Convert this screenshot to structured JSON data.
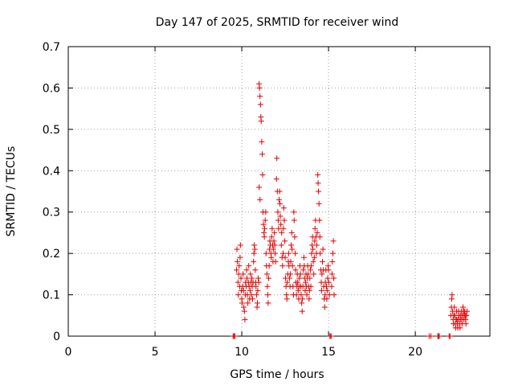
{
  "chart_data": {
    "type": "scatter",
    "title": "Day 147 of 2025, SRMTID for receiver wind",
    "xlabel": "GPS time / hours",
    "ylabel": "SRMTID / TECUs",
    "xlim": [
      0,
      24.3
    ],
    "ylim": [
      0,
      0.7
    ],
    "x_ticks": [
      0,
      5,
      10,
      15,
      20
    ],
    "x_tick_labels": [
      "0",
      "5",
      "10",
      "15",
      "20"
    ],
    "y_ticks": [
      0,
      0.1,
      0.2,
      0.3,
      0.4,
      0.5,
      0.6,
      0.7
    ],
    "y_tick_labels": [
      "0",
      "0.1",
      "0.2",
      "0.3",
      "0.4",
      "0.5",
      "0.6",
      "0.7"
    ],
    "grid": true,
    "marker": "plus",
    "color": "#e00000",
    "series": [
      {
        "name": "SRMTID",
        "points": [
          [
            9.5,
            0.0
          ],
          [
            9.55,
            0.0
          ],
          [
            9.6,
            0.0
          ],
          [
            9.7,
            0.16
          ],
          [
            9.72,
            0.21
          ],
          [
            9.75,
            0.18
          ],
          [
            9.78,
            0.13
          ],
          [
            9.8,
            0.1
          ],
          [
            9.82,
            0.15
          ],
          [
            9.85,
            0.17
          ],
          [
            9.88,
            0.12
          ],
          [
            9.9,
            0.19
          ],
          [
            9.92,
            0.22
          ],
          [
            9.95,
            0.14
          ],
          [
            9.98,
            0.11
          ],
          [
            10.0,
            0.09
          ],
          [
            10.02,
            0.08
          ],
          [
            10.05,
            0.12
          ],
          [
            10.08,
            0.15
          ],
          [
            10.1,
            0.11
          ],
          [
            10.12,
            0.07
          ],
          [
            10.15,
            0.06
          ],
          [
            10.18,
            0.04
          ],
          [
            10.2,
            0.1
          ],
          [
            10.22,
            0.13
          ],
          [
            10.25,
            0.12
          ],
          [
            10.28,
            0.16
          ],
          [
            10.3,
            0.14
          ],
          [
            10.32,
            0.1
          ],
          [
            10.35,
            0.08
          ],
          [
            10.38,
            0.13
          ],
          [
            10.4,
            0.17
          ],
          [
            10.42,
            0.12
          ],
          [
            10.45,
            0.09
          ],
          [
            10.48,
            0.11
          ],
          [
            10.5,
            0.15
          ],
          [
            10.52,
            0.13
          ],
          [
            10.55,
            0.1
          ],
          [
            10.58,
            0.14
          ],
          [
            10.6,
            0.12
          ],
          [
            10.62,
            0.09
          ],
          [
            10.65,
            0.13
          ],
          [
            10.68,
            0.18
          ],
          [
            10.7,
            0.2
          ],
          [
            10.72,
            0.22
          ],
          [
            10.75,
            0.21
          ],
          [
            10.78,
            0.16
          ],
          [
            10.8,
            0.13
          ],
          [
            10.82,
            0.12
          ],
          [
            10.85,
            0.1
          ],
          [
            10.88,
            0.07
          ],
          [
            10.9,
            0.08
          ],
          [
            10.92,
            0.11
          ],
          [
            10.95,
            0.14
          ],
          [
            10.98,
            0.13
          ],
          [
            11.0,
            0.61
          ],
          [
            11.02,
            0.6
          ],
          [
            11.05,
            0.58
          ],
          [
            11.08,
            0.56
          ],
          [
            11.1,
            0.53
          ],
          [
            11.12,
            0.52
          ],
          [
            11.15,
            0.47
          ],
          [
            11.18,
            0.44
          ],
          [
            11.2,
            0.39
          ],
          [
            11.0,
            0.36
          ],
          [
            11.05,
            0.33
          ],
          [
            11.22,
            0.3
          ],
          [
            11.25,
            0.27
          ],
          [
            11.28,
            0.25
          ],
          [
            11.3,
            0.24
          ],
          [
            11.32,
            0.26
          ],
          [
            11.35,
            0.28
          ],
          [
            11.38,
            0.3
          ],
          [
            11.4,
            0.2
          ],
          [
            11.42,
            0.17
          ],
          [
            11.45,
            0.15
          ],
          [
            11.48,
            0.12
          ],
          [
            11.5,
            0.1
          ],
          [
            11.52,
            0.08
          ],
          [
            11.55,
            0.14
          ],
          [
            11.58,
            0.17
          ],
          [
            11.6,
            0.21
          ],
          [
            11.62,
            0.23
          ],
          [
            11.65,
            0.22
          ],
          [
            11.68,
            0.2
          ],
          [
            11.7,
            0.19
          ],
          [
            11.72,
            0.24
          ],
          [
            11.75,
            0.26
          ],
          [
            11.78,
            0.22
          ],
          [
            11.8,
            0.18
          ],
          [
            11.82,
            0.21
          ],
          [
            11.85,
            0.23
          ],
          [
            11.88,
            0.25
          ],
          [
            11.9,
            0.22
          ],
          [
            11.92,
            0.2
          ],
          [
            11.95,
            0.18
          ],
          [
            12.0,
            0.38
          ],
          [
            12.02,
            0.43
          ],
          [
            12.05,
            0.35
          ],
          [
            12.08,
            0.3
          ],
          [
            12.1,
            0.28
          ],
          [
            12.12,
            0.26
          ],
          [
            12.15,
            0.33
          ],
          [
            12.18,
            0.35
          ],
          [
            12.2,
            0.32
          ],
          [
            12.22,
            0.29
          ],
          [
            12.25,
            0.27
          ],
          [
            12.28,
            0.22
          ],
          [
            12.3,
            0.25
          ],
          [
            12.32,
            0.19
          ],
          [
            12.35,
            0.17
          ],
          [
            12.38,
            0.2
          ],
          [
            12.4,
            0.26
          ],
          [
            12.42,
            0.31
          ],
          [
            12.45,
            0.28
          ],
          [
            12.48,
            0.23
          ],
          [
            12.5,
            0.19
          ],
          [
            12.52,
            0.14
          ],
          [
            12.55,
            0.12
          ],
          [
            12.58,
            0.1
          ],
          [
            12.6,
            0.09
          ],
          [
            12.62,
            0.13
          ],
          [
            12.65,
            0.15
          ],
          [
            12.68,
            0.18
          ],
          [
            12.7,
            0.2
          ],
          [
            12.72,
            0.17
          ],
          [
            12.75,
            0.14
          ],
          [
            12.78,
            0.12
          ],
          [
            12.8,
            0.15
          ],
          [
            12.82,
            0.18
          ],
          [
            12.85,
            0.22
          ],
          [
            12.88,
            0.25
          ],
          [
            12.9,
            0.21
          ],
          [
            12.92,
            0.17
          ],
          [
            12.95,
            0.12
          ],
          [
            12.98,
            0.1
          ],
          [
            13.0,
            0.3
          ],
          [
            13.02,
            0.28
          ],
          [
            13.05,
            0.24
          ],
          [
            13.08,
            0.2
          ],
          [
            13.1,
            0.16
          ],
          [
            13.12,
            0.13
          ],
          [
            13.15,
            0.1
          ],
          [
            13.18,
            0.12
          ],
          [
            13.2,
            0.15
          ],
          [
            13.22,
            0.13
          ],
          [
            13.25,
            0.11
          ],
          [
            13.28,
            0.09
          ],
          [
            13.3,
            0.12
          ],
          [
            13.32,
            0.14
          ],
          [
            13.35,
            0.17
          ],
          [
            13.38,
            0.15
          ],
          [
            13.4,
            0.12
          ],
          [
            13.42,
            0.1
          ],
          [
            13.45,
            0.08
          ],
          [
            13.48,
            0.06
          ],
          [
            13.5,
            0.09
          ],
          [
            13.52,
            0.12
          ],
          [
            13.55,
            0.16
          ],
          [
            13.58,
            0.19
          ],
          [
            13.6,
            0.17
          ],
          [
            13.62,
            0.14
          ],
          [
            13.65,
            0.11
          ],
          [
            13.68,
            0.13
          ],
          [
            13.7,
            0.15
          ],
          [
            13.72,
            0.12
          ],
          [
            13.75,
            0.1
          ],
          [
            13.78,
            0.14
          ],
          [
            13.8,
            0.17
          ],
          [
            13.82,
            0.15
          ],
          [
            13.85,
            0.12
          ],
          [
            13.88,
            0.09
          ],
          [
            13.9,
            0.11
          ],
          [
            13.92,
            0.14
          ],
          [
            13.95,
            0.16
          ],
          [
            13.98,
            0.12
          ],
          [
            14.0,
            0.17
          ],
          [
            14.02,
            0.2
          ],
          [
            14.05,
            0.22
          ],
          [
            14.08,
            0.24
          ],
          [
            14.1,
            0.21
          ],
          [
            14.12,
            0.18
          ],
          [
            14.15,
            0.15
          ],
          [
            14.18,
            0.19
          ],
          [
            14.2,
            0.23
          ],
          [
            14.22,
            0.26
          ],
          [
            14.25,
            0.28
          ],
          [
            14.28,
            0.24
          ],
          [
            14.3,
            0.2
          ],
          [
            14.32,
            0.22
          ],
          [
            14.35,
            0.25
          ],
          [
            14.38,
            0.39
          ],
          [
            14.4,
            0.37
          ],
          [
            14.42,
            0.35
          ],
          [
            14.45,
            0.32
          ],
          [
            14.48,
            0.28
          ],
          [
            14.5,
            0.24
          ],
          [
            14.52,
            0.2
          ],
          [
            14.55,
            0.16
          ],
          [
            14.58,
            0.13
          ],
          [
            14.6,
            0.11
          ],
          [
            14.62,
            0.15
          ],
          [
            14.65,
            0.18
          ],
          [
            14.68,
            0.21
          ],
          [
            14.7,
            0.16
          ],
          [
            14.72,
            0.12
          ],
          [
            14.75,
            0.09
          ],
          [
            14.78,
            0.07
          ],
          [
            14.8,
            0.1
          ],
          [
            14.82,
            0.13
          ],
          [
            14.85,
            0.16
          ],
          [
            14.88,
            0.12
          ],
          [
            14.9,
            0.09
          ],
          [
            14.92,
            0.11
          ],
          [
            14.95,
            0.14
          ],
          [
            14.98,
            0.17
          ],
          [
            15.0,
            0.16
          ],
          [
            15.02,
            0.13
          ],
          [
            15.05,
            0.1
          ],
          [
            15.08,
            0.0
          ],
          [
            15.1,
            0.0
          ],
          [
            15.15,
            0.0
          ],
          [
            15.18,
            0.12
          ],
          [
            15.2,
            0.15
          ],
          [
            15.22,
            0.18
          ],
          [
            15.25,
            0.2
          ],
          [
            15.28,
            0.23
          ],
          [
            15.3,
            0.14
          ],
          [
            15.32,
            0.1
          ],
          [
            20.8,
            0.0
          ],
          [
            20.9,
            0.0
          ],
          [
            21.3,
            0.0
          ],
          [
            21.32,
            0.0
          ],
          [
            21.35,
            0.0
          ],
          [
            21.38,
            0.0
          ],
          [
            21.95,
            0.0
          ],
          [
            22.0,
            0.0
          ],
          [
            22.05,
            0.05
          ],
          [
            22.08,
            0.07
          ],
          [
            22.1,
            0.09
          ],
          [
            22.12,
            0.1
          ],
          [
            22.15,
            0.06
          ],
          [
            22.18,
            0.04
          ],
          [
            22.2,
            0.03
          ],
          [
            22.22,
            0.05
          ],
          [
            22.25,
            0.07
          ],
          [
            22.28,
            0.05
          ],
          [
            22.3,
            0.03
          ],
          [
            22.32,
            0.02
          ],
          [
            22.35,
            0.04
          ],
          [
            22.38,
            0.06
          ],
          [
            22.4,
            0.04
          ],
          [
            22.42,
            0.03
          ],
          [
            22.45,
            0.02
          ],
          [
            22.48,
            0.04
          ],
          [
            22.5,
            0.06
          ],
          [
            22.52,
            0.05
          ],
          [
            22.55,
            0.03
          ],
          [
            22.58,
            0.02
          ],
          [
            22.6,
            0.04
          ],
          [
            22.62,
            0.05
          ],
          [
            22.65,
            0.06
          ],
          [
            22.68,
            0.04
          ],
          [
            22.7,
            0.03
          ],
          [
            22.72,
            0.05
          ],
          [
            22.75,
            0.07
          ],
          [
            22.78,
            0.06
          ],
          [
            22.8,
            0.04
          ],
          [
            22.82,
            0.05
          ],
          [
            22.85,
            0.06
          ],
          [
            22.88,
            0.05
          ],
          [
            22.9,
            0.04
          ],
          [
            22.92,
            0.03
          ],
          [
            22.95,
            0.05
          ],
          [
            22.98,
            0.06
          ]
        ]
      }
    ]
  }
}
